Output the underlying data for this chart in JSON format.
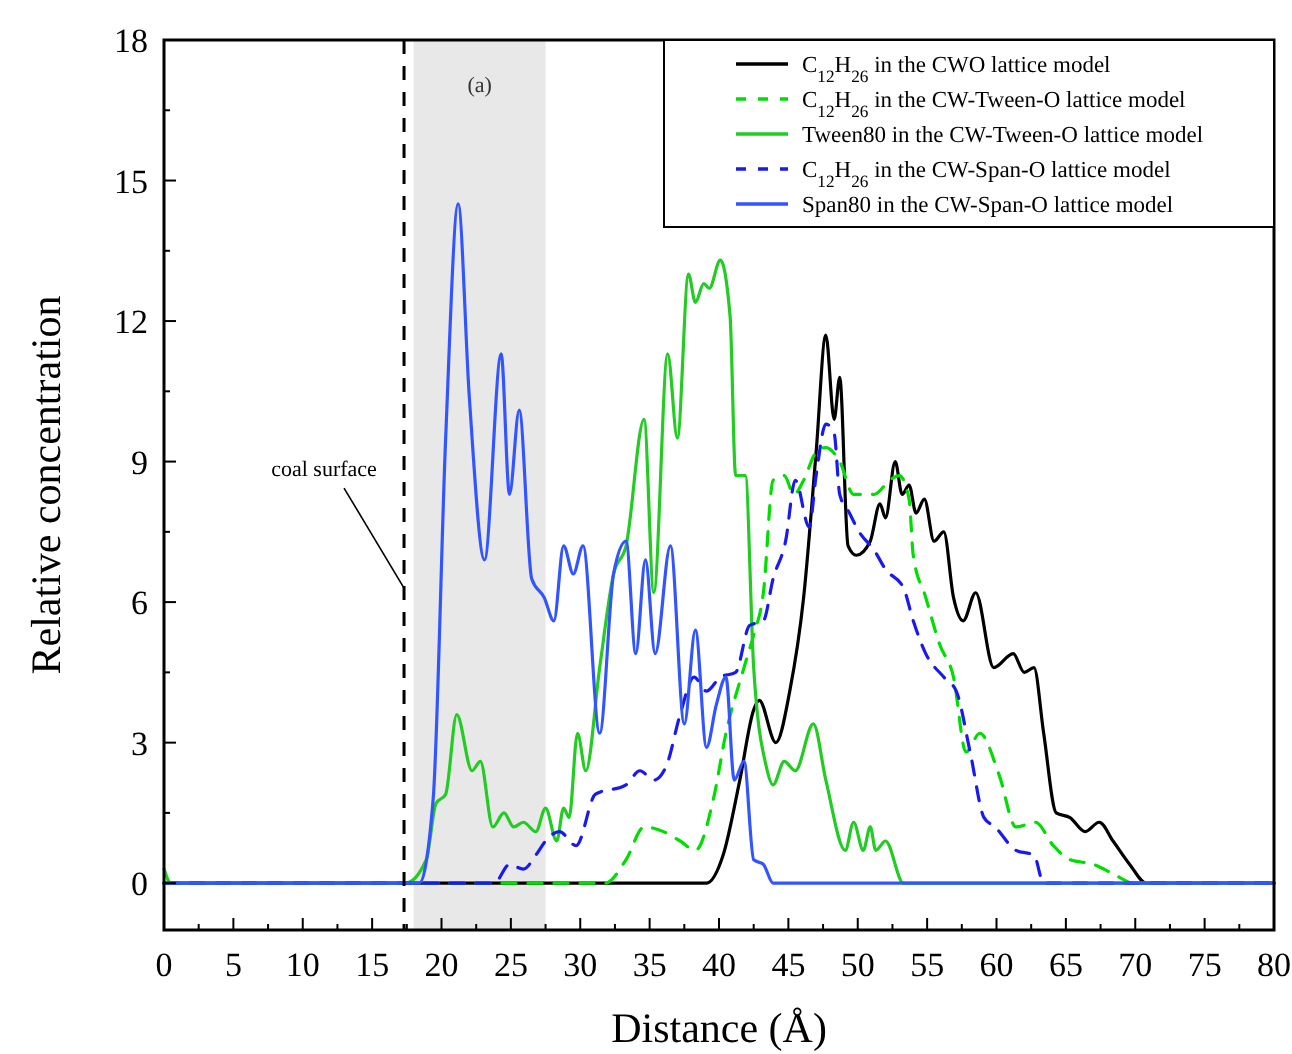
{
  "chart_data": {
    "type": "line",
    "xlabel": "Distance (Å)",
    "ylabel": "Relative concentration",
    "xlim": [
      0,
      80
    ],
    "ylim": [
      -1,
      18
    ],
    "xticks": [
      0,
      {
        "value": 2.5,
        "label": null
      },
      5,
      {
        "value": 7.5,
        "label": null
      },
      10,
      {
        "value": 12.5,
        "label": null
      },
      15,
      {
        "value": 17.5,
        "label": null
      },
      20,
      {
        "value": 22.5,
        "label": null
      },
      25,
      {
        "value": 27.5,
        "label": null
      },
      30,
      {
        "value": 32.5,
        "label": null
      },
      35,
      {
        "value": 37.5,
        "label": null
      },
      40,
      {
        "value": 42.5,
        "label": null
      },
      45,
      {
        "value": 47.5,
        "label": null
      },
      50,
      {
        "value": 52.5,
        "label": null
      },
      55,
      {
        "value": 57.5,
        "label": null
      },
      60,
      {
        "value": 62.5,
        "label": null
      },
      65,
      {
        "value": 67.5,
        "label": null
      },
      70,
      {
        "value": 72.5,
        "label": null
      },
      75,
      {
        "value": 77.5,
        "label": null
      },
      80
    ],
    "yticks": [
      0,
      {
        "value": 1.5,
        "label": null
      },
      3,
      {
        "value": 4.5,
        "label": null
      },
      6,
      {
        "value": 7.5,
        "label": null
      },
      9,
      {
        "value": 10.5,
        "label": null
      },
      12,
      {
        "value": 13.5,
        "label": null
      },
      15,
      {
        "value": 16.5,
        "label": null
      },
      18
    ],
    "grid": false,
    "legend": "top right",
    "marker": "none",
    "ref_lines": [
      {
        "axis": "x",
        "value": 17.3,
        "color": "#000000",
        "line_style": "dashed"
      }
    ],
    "bands": [
      {
        "axis": "x",
        "from": 18,
        "to": 27.5,
        "color": "#e8e8e8"
      }
    ],
    "annotations": [
      "(a)",
      {
        "text": "coal surface",
        "x": 17.3,
        "y": 6.3
      }
    ],
    "series": [
      {
        "name": "C$_{12}$H$_{26}$ in the CWO lattice model",
        "color": "#000000",
        "line_style": "solid",
        "x": [
          0,
          39.1,
          40.3,
          41.5,
          42.5,
          42.9,
          44.1,
          45.1,
          46.1,
          47.0,
          47.7,
          48.3,
          48.7,
          49.3,
          49.9,
          50.9,
          51.6,
          52.0,
          52.7,
          53.2,
          53.7,
          54.2,
          54.8,
          55.5,
          56.2,
          56.9,
          57.6,
          58.5,
          59.8,
          61.2,
          62.0,
          62.7,
          63.4,
          64.3,
          65.3,
          66.4,
          67.4,
          68.4,
          69.6,
          70.8,
          80
        ],
        "values": [
          0,
          0,
          0.6,
          2.2,
          3.7,
          3.9,
          3.0,
          4.1,
          6.1,
          9.2,
          11.7,
          9.9,
          10.8,
          7.2,
          7.0,
          7.3,
          8.1,
          7.8,
          9.0,
          8.3,
          8.5,
          7.9,
          8.2,
          7.3,
          7.5,
          6.1,
          5.6,
          6.2,
          4.6,
          4.9,
          4.5,
          4.6,
          3.2,
          1.5,
          1.4,
          1.1,
          1.3,
          0.9,
          0.4,
          0,
          0
        ]
      },
      {
        "name": "C$_{12}$H$_{26}$ in the CW-Tween-O lattice model",
        "color": "#00dd00",
        "line_style": "dashed",
        "x": [
          0,
          31.8,
          33.3,
          34.6,
          36.0,
          37.2,
          38.3,
          39.6,
          40.5,
          41.8,
          42.5,
          43.2,
          43.9,
          44.7,
          45.4,
          46.1,
          47.0,
          47.7,
          48.7,
          49.7,
          51.2,
          52.3,
          53.0,
          53.7,
          54.0,
          54.9,
          55.9,
          56.9,
          57.8,
          58.8,
          60.2,
          61.4,
          62.8,
          64.1,
          65.3,
          67.0,
          68.4,
          69.9,
          80
        ],
        "values": [
          0,
          0,
          0.5,
          1.2,
          1.1,
          0.9,
          0.7,
          1.8,
          3.2,
          4.6,
          5.3,
          6.2,
          8.6,
          8.7,
          8.3,
          8.6,
          9.2,
          9.3,
          9.0,
          8.3,
          8.3,
          8.6,
          8.7,
          8.2,
          7.0,
          6.1,
          5.1,
          4.4,
          2.8,
          3.2,
          2.3,
          1.2,
          1.3,
          0.8,
          0.5,
          0.4,
          0.2,
          0,
          0
        ]
      },
      {
        "name": "Tween80 in the CW-Tween-O lattice model",
        "color": "#22cc22",
        "line_style": "solid",
        "x": [
          0,
          0.5,
          17.4,
          18.9,
          19.6,
          20.3,
          21.1,
          22.2,
          22.8,
          23.7,
          24.5,
          25.2,
          25.9,
          26.8,
          27.5,
          28.3,
          28.8,
          29.2,
          29.8,
          30.4,
          31.4,
          32.4,
          33.3,
          34.6,
          35.3,
          36.3,
          37.0,
          37.8,
          38.3,
          38.9,
          39.3,
          40.1,
          40.8,
          41.2,
          41.9,
          42.5,
          43.4,
          43.9,
          44.7,
          45.5,
          46.8,
          47.7,
          49.1,
          49.7,
          50.4,
          50.9,
          51.3,
          52.0,
          53.3,
          80
        ],
        "values": [
          0.3,
          0,
          0,
          0.5,
          1.7,
          1.9,
          3.6,
          2.4,
          2.6,
          1.2,
          1.5,
          1.2,
          1.3,
          1.1,
          1.6,
          0.9,
          1.6,
          1.4,
          3.2,
          2.4,
          4.6,
          6.6,
          7.2,
          9.9,
          6.2,
          11.3,
          9.5,
          13.0,
          12.4,
          12.8,
          12.7,
          13.3,
          12.1,
          8.7,
          8.7,
          4.6,
          2.5,
          2.1,
          2.6,
          2.4,
          3.4,
          2.2,
          0.7,
          1.3,
          0.7,
          1.2,
          0.7,
          0.9,
          0,
          0
        ]
      },
      {
        "name": "C$_{12}$H$_{26}$ in the CW-Span-O lattice model",
        "color": "#1a1aee",
        "line_style": "dashed",
        "x": [
          0,
          23.8,
          24.9,
          25.9,
          26.8,
          27.5,
          28.5,
          29.7,
          31.1,
          33.3,
          34.3,
          35.3,
          36.2,
          37.2,
          38.2,
          39.1,
          40.1,
          41.2,
          42.2,
          43.2,
          43.9,
          44.8,
          45.5,
          46.5,
          47.0,
          47.7,
          48.3,
          48.7,
          49.4,
          50.1,
          51.2,
          52.0,
          53.3,
          54.0,
          54.9,
          56.2,
          57.1,
          58.1,
          59.1,
          59.9,
          61.4,
          62.7,
          63.4,
          80
        ],
        "values": [
          0,
          0,
          0.4,
          0.3,
          0.6,
          0.9,
          1.1,
          0.8,
          1.9,
          2.1,
          2.4,
          2.2,
          2.5,
          3.6,
          4.4,
          4.1,
          4.4,
          4.5,
          5.5,
          5.6,
          6.5,
          7.3,
          8.6,
          7.6,
          8.7,
          9.8,
          9.6,
          8.3,
          7.9,
          7.5,
          7.1,
          6.7,
          6.3,
          5.6,
          4.9,
          4.4,
          4.1,
          2.8,
          1.4,
          1.2,
          0.7,
          0.6,
          0,
          0
        ]
      },
      {
        "name": "Span80 in the CW-Span-O lattice model",
        "color": "#3355ff",
        "line_style": "solid",
        "x": [
          0,
          18.4,
          19.4,
          20.3,
          21.2,
          22.0,
          23.1,
          24.3,
          24.9,
          25.6,
          26.5,
          27.4,
          28.1,
          28.8,
          29.5,
          30.2,
          31.4,
          32.4,
          33.3,
          34.0,
          34.7,
          35.4,
          36.5,
          37.5,
          38.3,
          39.1,
          39.8,
          40.5,
          41.1,
          41.8,
          42.5,
          43.2,
          43.9,
          80
        ],
        "values": [
          0,
          0,
          1.8,
          9.5,
          14.5,
          10.4,
          6.9,
          11.3,
          8.3,
          10.1,
          6.5,
          6.1,
          5.6,
          7.2,
          6.6,
          7.2,
          3.2,
          6.6,
          7.3,
          4.9,
          6.9,
          4.9,
          7.2,
          3.4,
          5.4,
          2.9,
          3.8,
          4.4,
          2.2,
          2.6,
          0.5,
          0.4,
          0,
          0
        ]
      }
    ]
  }
}
